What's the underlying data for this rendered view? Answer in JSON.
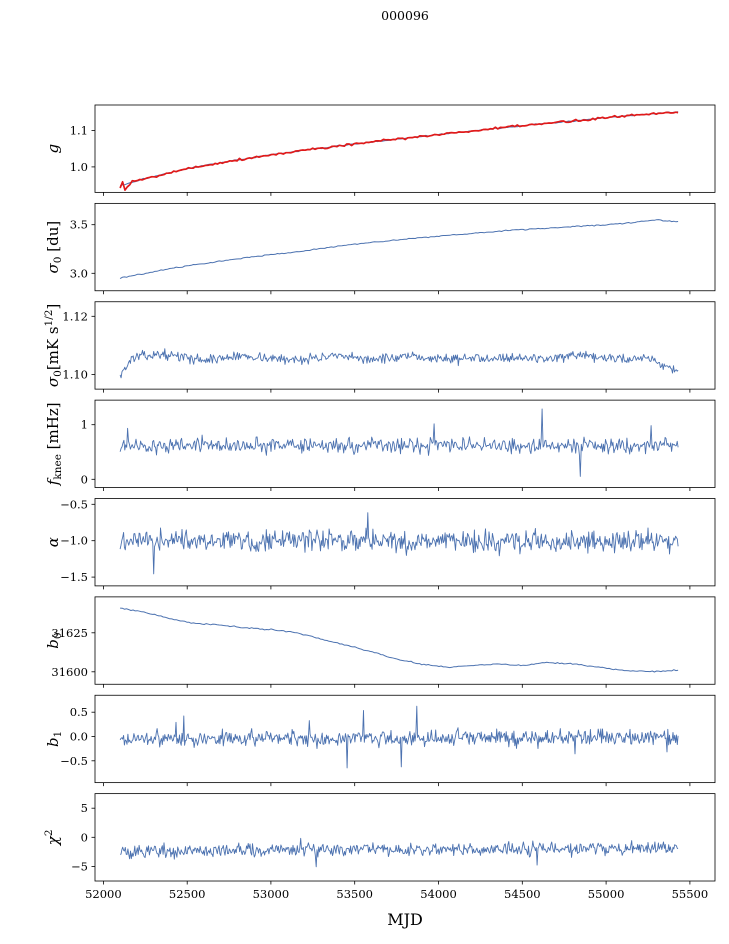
{
  "colors": {
    "line": "#4c72b0",
    "overlay": "#e01a1a",
    "axis": "#000000",
    "background": "#ffffff"
  },
  "chart_data": {
    "type": "line",
    "title": "000096",
    "xlabel": "MJD",
    "shared_x": true,
    "grid": false,
    "legend": "none",
    "xlim": [
      51950,
      55650
    ],
    "xticks": [
      52000,
      52500,
      53000,
      53500,
      54000,
      54500,
      55000,
      55500
    ],
    "xticklabels": [
      "52000",
      "52500",
      "53000",
      "53500",
      "54000",
      "54500",
      "55000",
      "55500"
    ],
    "x_data_range": [
      52100,
      55430
    ],
    "subplots": [
      {
        "name": "g",
        "ylabel_text": "g",
        "label_parts": [
          {
            "t": "g",
            "i": 1
          }
        ],
        "ylim": [
          0.93,
          1.17
        ],
        "yticks": [
          {
            "v": 1.0,
            "label": "1.0"
          },
          {
            "v": 1.1,
            "label": "1.1"
          }
        ],
        "series": [
          {
            "name": "g-gain-blue",
            "color": "line",
            "width": 1.0,
            "points": 220,
            "noise": 0.0012,
            "seed": 3,
            "trend": [
              [
                52100,
                0.948
              ],
              [
                52250,
                0.968
              ],
              [
                52400,
                0.985
              ],
              [
                52600,
                1.004
              ],
              [
                52800,
                1.019
              ],
              [
                53000,
                1.033
              ],
              [
                53250,
                1.049
              ],
              [
                53500,
                1.063
              ],
              [
                53750,
                1.076
              ],
              [
                54000,
                1.089
              ],
              [
                54250,
                1.101
              ],
              [
                54500,
                1.113
              ],
              [
                54750,
                1.124
              ],
              [
                55000,
                1.135
              ],
              [
                55150,
                1.142
              ],
              [
                55300,
                1.147
              ],
              [
                55430,
                1.151
              ]
            ]
          },
          {
            "name": "g-gain-red",
            "color": "overlay",
            "width": 1.7,
            "points": 230,
            "noise": 0.0025,
            "seed": 5,
            "start_spread": {
              "until": 52175,
              "amp": 0.016
            },
            "trend": [
              [
                52100,
                0.948
              ],
              [
                52250,
                0.968
              ],
              [
                52400,
                0.985
              ],
              [
                52600,
                1.004
              ],
              [
                52800,
                1.019
              ],
              [
                53000,
                1.033
              ],
              [
                53250,
                1.049
              ],
              [
                53500,
                1.063
              ],
              [
                53750,
                1.076
              ],
              [
                54000,
                1.089
              ],
              [
                54250,
                1.101
              ],
              [
                54500,
                1.113
              ],
              [
                54750,
                1.124
              ],
              [
                55000,
                1.135
              ],
              [
                55150,
                1.142
              ],
              [
                55300,
                1.147
              ],
              [
                55430,
                1.151
              ]
            ]
          }
        ]
      },
      {
        "name": "sigma0-du",
        "ylabel_text": "σ0 [du]",
        "label_parts": [
          {
            "t": "σ",
            "i": 1
          },
          {
            "t": "0",
            "sub": 1
          },
          {
            "t": " [du]"
          }
        ],
        "ylim": [
          2.82,
          3.72
        ],
        "yticks": [
          {
            "v": 3.0,
            "label": "3.0"
          },
          {
            "v": 3.5,
            "label": "3.5"
          }
        ],
        "series": [
          {
            "name": "sigma0-du",
            "color": "line",
            "width": 1.0,
            "points": 260,
            "noise": 0.004,
            "seed": 8,
            "trend": [
              [
                52100,
                2.95
              ],
              [
                52250,
                3.0
              ],
              [
                52400,
                3.05
              ],
              [
                52600,
                3.1
              ],
              [
                52800,
                3.15
              ],
              [
                53000,
                3.19
              ],
              [
                53200,
                3.23
              ],
              [
                53400,
                3.28
              ],
              [
                53600,
                3.32
              ],
              [
                53800,
                3.35
              ],
              [
                54000,
                3.38
              ],
              [
                54200,
                3.41
              ],
              [
                54400,
                3.44
              ],
              [
                54600,
                3.46
              ],
              [
                54800,
                3.48
              ],
              [
                55000,
                3.5
              ],
              [
                55150,
                3.52
              ],
              [
                55300,
                3.55
              ],
              [
                55430,
                3.53
              ]
            ]
          }
        ]
      },
      {
        "name": "sigma0-mk",
        "ylabel_text": "σ0[mK s1/2]",
        "label_parts": [
          {
            "t": "σ",
            "i": 1
          },
          {
            "t": "0",
            "sub": 1
          },
          {
            "t": "[mK s"
          },
          {
            "t": "1/2",
            "sup": 1
          },
          {
            "t": "]"
          }
        ],
        "ylim": [
          1.095,
          1.125
        ],
        "yticks": [
          {
            "v": 1.1,
            "label": "1.10"
          },
          {
            "v": 1.12,
            "label": "1.12"
          }
        ],
        "series": [
          {
            "name": "sigma0-mk",
            "color": "line",
            "width": 0.9,
            "points": 600,
            "noise": 0.0012,
            "seed": 13,
            "trend": [
              [
                52100,
                1.1
              ],
              [
                52180,
                1.106
              ],
              [
                52350,
                1.107
              ],
              [
                52600,
                1.105
              ],
              [
                52850,
                1.1065
              ],
              [
                53100,
                1.105
              ],
              [
                53350,
                1.1062
              ],
              [
                53600,
                1.1053
              ],
              [
                53850,
                1.106
              ],
              [
                54100,
                1.1053
              ],
              [
                54350,
                1.106
              ],
              [
                54600,
                1.1055
              ],
              [
                54850,
                1.1062
              ],
              [
                55100,
                1.1053
              ],
              [
                55250,
                1.106
              ],
              [
                55350,
                1.103
              ],
              [
                55430,
                1.1015
              ]
            ]
          }
        ]
      },
      {
        "name": "fknee",
        "ylabel_text": "fknee [mHz]",
        "label_parts": [
          {
            "t": "f",
            "i": 1
          },
          {
            "t": "knee",
            "sub": 1
          },
          {
            "t": " [mHz]"
          }
        ],
        "ylim": [
          -0.15,
          1.45
        ],
        "yticks": [
          {
            "v": 0,
            "label": "0"
          },
          {
            "v": 1,
            "label": "1"
          }
        ],
        "series": [
          {
            "name": "fknee",
            "color": "line",
            "width": 0.9,
            "points": 600,
            "noise": 0.1,
            "seed": 21,
            "spikes": {
              "prob": 0.012,
              "amp": 0.4
            },
            "trend": [
              [
                52100,
                0.62
              ],
              [
                55430,
                0.62
              ]
            ]
          }
        ]
      },
      {
        "name": "alpha",
        "ylabel_text": "α",
        "label_parts": [
          {
            "t": "α",
            "i": 1
          }
        ],
        "ylim": [
          -1.62,
          -0.42
        ],
        "yticks": [
          {
            "v": -0.5,
            "label": "−0.5"
          },
          {
            "v": -1.0,
            "label": "−1.0"
          },
          {
            "v": -1.5,
            "label": "−1.5"
          }
        ],
        "series": [
          {
            "name": "alpha",
            "color": "line",
            "width": 0.9,
            "points": 650,
            "noise": 0.11,
            "seed": 34,
            "spikes": {
              "prob": 0.01,
              "amp": 0.3
            },
            "trend": [
              [
                52100,
                -1.0
              ],
              [
                55430,
                -1.0
              ]
            ]
          }
        ]
      },
      {
        "name": "b0",
        "ylabel_text": "b0",
        "label_parts": [
          {
            "t": "b",
            "i": 1
          },
          {
            "t": "0",
            "sub": 1
          }
        ],
        "ylim": [
          31592,
          31648
        ],
        "yticks": [
          {
            "v": 31600,
            "label": "31600"
          },
          {
            "v": 31625,
            "label": "31625"
          }
        ],
        "series": [
          {
            "name": "b0-baseline",
            "color": "line",
            "width": 1.0,
            "points": 260,
            "noise": 0.3,
            "seed": 55,
            "trend": [
              [
                52100,
                31641
              ],
              [
                52250,
                31638
              ],
              [
                52400,
                31634
              ],
              [
                52550,
                31631
              ],
              [
                52700,
                31630
              ],
              [
                52850,
                31628
              ],
              [
                53000,
                31627
              ],
              [
                53150,
                31625
              ],
              [
                53300,
                31621
              ],
              [
                53450,
                31617
              ],
              [
                53600,
                31613
              ],
              [
                53750,
                31608
              ],
              [
                53900,
                31605
              ],
              [
                54050,
                31603
              ],
              [
                54200,
                31604
              ],
              [
                54350,
                31605
              ],
              [
                54500,
                31604
              ],
              [
                54650,
                31606
              ],
              [
                54800,
                31605
              ],
              [
                54950,
                31603
              ],
              [
                55100,
                31601
              ],
              [
                55250,
                31600
              ],
              [
                55430,
                31601
              ]
            ]
          }
        ]
      },
      {
        "name": "b1",
        "ylabel_text": "b1",
        "label_parts": [
          {
            "t": "b",
            "i": 1
          },
          {
            "t": "1",
            "sub": 1
          }
        ],
        "ylim": [
          -0.95,
          0.85
        ],
        "yticks": [
          {
            "v": 0.5,
            "label": "0.5"
          },
          {
            "v": 0.0,
            "label": "0.0"
          },
          {
            "v": -0.5,
            "label": "−0.5"
          }
        ],
        "series": [
          {
            "name": "b1-slope",
            "color": "line",
            "width": 0.9,
            "points": 650,
            "noise": 0.12,
            "seed": 89,
            "spikes": {
              "prob": 0.015,
              "amp": 0.45
            },
            "trend": [
              [
                52100,
                -0.05
              ],
              [
                55430,
                -0.02
              ]
            ]
          }
        ]
      },
      {
        "name": "chi2",
        "ylabel_text": "χ2",
        "label_parts": [
          {
            "t": "χ",
            "i": 1
          },
          {
            "t": "2",
            "sup": 1
          }
        ],
        "ylim": [
          -7.5,
          7.5
        ],
        "yticks": [
          {
            "v": 5,
            "label": "5"
          },
          {
            "v": 0,
            "label": "0"
          },
          {
            "v": -5,
            "label": "−5"
          }
        ],
        "series": [
          {
            "name": "chi2",
            "color": "line",
            "width": 0.9,
            "points": 650,
            "noise": 0.85,
            "seed": 144,
            "spikes": {
              "prob": 0.008,
              "amp": 2.0
            },
            "trend": [
              [
                52100,
                -2.4
              ],
              [
                55430,
                -1.8
              ]
            ]
          }
        ]
      }
    ]
  }
}
